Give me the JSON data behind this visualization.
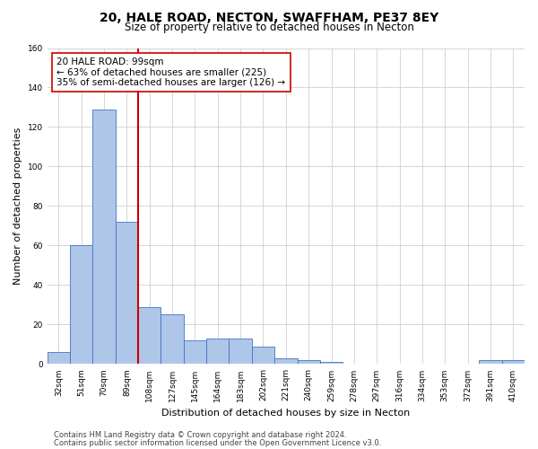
{
  "title_line1": "20, HALE ROAD, NECTON, SWAFFHAM, PE37 8EY",
  "title_line2": "Size of property relative to detached houses in Necton",
  "xlabel": "Distribution of detached houses by size in Necton",
  "ylabel": "Number of detached properties",
  "categories": [
    "32sqm",
    "51sqm",
    "70sqm",
    "89sqm",
    "108sqm",
    "127sqm",
    "145sqm",
    "164sqm",
    "183sqm",
    "202sqm",
    "221sqm",
    "240sqm",
    "259sqm",
    "278sqm",
    "297sqm",
    "316sqm",
    "334sqm",
    "353sqm",
    "372sqm",
    "391sqm",
    "410sqm"
  ],
  "values": [
    6,
    60,
    129,
    72,
    29,
    25,
    12,
    13,
    13,
    9,
    3,
    2,
    1,
    0,
    0,
    0,
    0,
    0,
    0,
    2,
    2
  ],
  "bar_color": "#aec6e8",
  "bar_edge_color": "#4472c4",
  "ref_line_color": "#cc0000",
  "annotation_text": "20 HALE ROAD: 99sqm\n← 63% of detached houses are smaller (225)\n35% of semi-detached houses are larger (126) →",
  "annotation_box_color": "#ffffff",
  "annotation_box_edge_color": "#cc0000",
  "ylim": [
    0,
    160
  ],
  "yticks": [
    0,
    20,
    40,
    60,
    80,
    100,
    120,
    140,
    160
  ],
  "grid_color": "#d0d0d0",
  "background_color": "#ffffff",
  "footer_line1": "Contains HM Land Registry data © Crown copyright and database right 2024.",
  "footer_line2": "Contains public sector information licensed under the Open Government Licence v3.0.",
  "title_fontsize": 10,
  "subtitle_fontsize": 8.5,
  "axis_label_fontsize": 8,
  "tick_fontsize": 6.5,
  "annotation_fontsize": 7.5,
  "footer_fontsize": 6
}
